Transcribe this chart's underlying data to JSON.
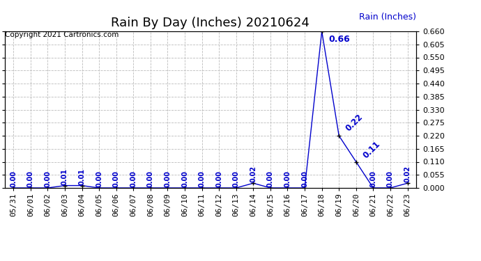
{
  "title": "Rain By Day (Inches) 20210624",
  "copyright_text": "Copyright 2021 Cartronics.com",
  "legend_label": "Rain (Inches)",
  "dates": [
    "05/31",
    "06/01",
    "06/02",
    "06/03",
    "06/04",
    "06/05",
    "06/06",
    "06/07",
    "06/08",
    "06/09",
    "06/10",
    "06/11",
    "06/12",
    "06/13",
    "06/14",
    "06/15",
    "06/16",
    "06/17",
    "06/18",
    "06/19",
    "06/20",
    "06/21",
    "06/22",
    "06/23"
  ],
  "values": [
    0.0,
    0.0,
    0.0,
    0.01,
    0.01,
    0.0,
    0.0,
    0.0,
    0.0,
    0.0,
    0.0,
    0.0,
    0.0,
    0.0,
    0.02,
    0.0,
    0.0,
    0.0,
    0.66,
    0.22,
    0.11,
    0.0,
    0.0,
    0.02
  ],
  "line_color": "#0000cc",
  "marker_color": "#000000",
  "annotation_color": "#0000cc",
  "bg_color": "#ffffff",
  "grid_color": "#bbbbbb",
  "ylim_max": 0.66,
  "yticks": [
    0.0,
    0.055,
    0.11,
    0.165,
    0.22,
    0.275,
    0.33,
    0.385,
    0.44,
    0.495,
    0.55,
    0.605,
    0.66
  ],
  "title_fontsize": 13,
  "annotation_fontsize": 7,
  "tick_fontsize": 8,
  "copyright_fontsize": 7.5
}
